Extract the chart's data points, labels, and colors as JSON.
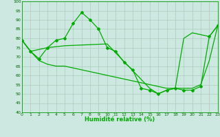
{
  "xlabel": "Humidité relative (%)",
  "bg_color": "#cce8e0",
  "grid_color": "#aaccbb",
  "line_color": "#00aa00",
  "xlim": [
    0,
    23
  ],
  "ylim": [
    40,
    100
  ],
  "yticks": [
    40,
    45,
    50,
    55,
    60,
    65,
    70,
    75,
    80,
    85,
    90,
    95,
    100
  ],
  "xticks": [
    0,
    1,
    2,
    3,
    4,
    5,
    6,
    7,
    8,
    9,
    10,
    11,
    12,
    13,
    14,
    15,
    16,
    17,
    18,
    19,
    20,
    21,
    22,
    23
  ],
  "line1_x": [
    0,
    1,
    2,
    3,
    4,
    5,
    6,
    7,
    8,
    9,
    10,
    11,
    12,
    13,
    14,
    15,
    16,
    17,
    18,
    19,
    20,
    21,
    22,
    23
  ],
  "line1_y": [
    79,
    73,
    69,
    75,
    79,
    80,
    88,
    94,
    90,
    85,
    75,
    73,
    67,
    63,
    53,
    52,
    50,
    52,
    53,
    52,
    52,
    54,
    81,
    87
  ],
  "line2_x": [
    0,
    1,
    3,
    5,
    10,
    15,
    16,
    17,
    18,
    19,
    20,
    22,
    23
  ],
  "line2_y": [
    79,
    73,
    75,
    76,
    77,
    53,
    50,
    52,
    53,
    80,
    83,
    81,
    87
  ],
  "line3_x": [
    0,
    1,
    2,
    3,
    4,
    5,
    6,
    7,
    8,
    9,
    10,
    11,
    12,
    13,
    14,
    15,
    16,
    17,
    18,
    19,
    20,
    21,
    22,
    23
  ],
  "line3_y": [
    79,
    73,
    68,
    66,
    65,
    65,
    64,
    63,
    62,
    61,
    60,
    59,
    58,
    57,
    56,
    55,
    54,
    53,
    53,
    53,
    53,
    55,
    68,
    87
  ]
}
